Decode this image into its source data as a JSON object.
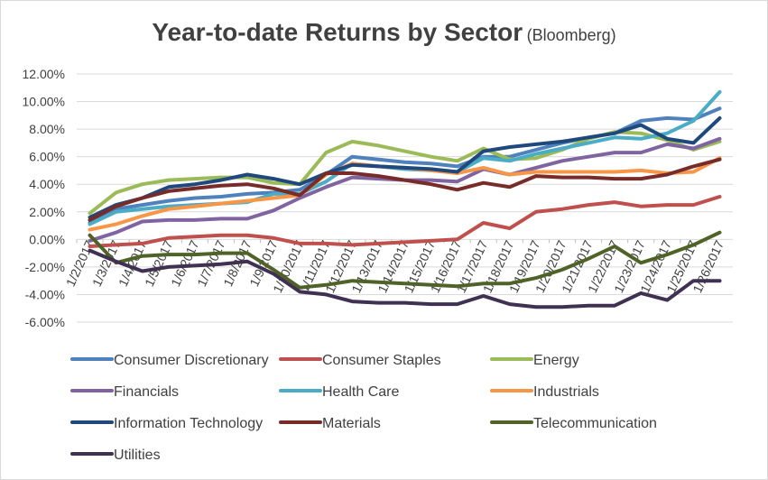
{
  "chart_data": {
    "type": "line",
    "title": "Year-to-date Returns by Sector",
    "subtitle": "(Bloomberg)",
    "xlabel": "",
    "ylabel": "",
    "ylim": [
      -0.06,
      0.12
    ],
    "y_ticks": [
      "12.00%",
      "10.00%",
      "8.00%",
      "6.00%",
      "4.00%",
      "2.00%",
      "0.00%",
      "-2.00%",
      "-4.00%",
      "-6.00%"
    ],
    "x_tick_labels": [
      "1/2/2017",
      "1/3/2017",
      "1/4/2017",
      "1/5/2017",
      "1/6/2017",
      "1/7/2017",
      "1/8/2017",
      "1/9/2017",
      "1/10/2017",
      "1/11/2017",
      "1/12/2017",
      "1/13/2017",
      "1/14/2017",
      "1/15/2017",
      "1/16/2017",
      "1/17/2017",
      "1/18/2017",
      "1/19/2017",
      "1/20/2017",
      "1/21/2017",
      "1/22/2017",
      "1/23/2017",
      "1/24/2017",
      "1/25/2017",
      "1/26/2017"
    ],
    "x": [
      "1/2/2017",
      "1/3/2017",
      "1/4/2017",
      "1/5/2017",
      "1/6/2017",
      "1/7/2017",
      "1/8/2017",
      "1/9/2017",
      "1/10/2017",
      "1/11/2017",
      "1/12/2017",
      "1/13/2017",
      "1/14/2017",
      "1/15/2017",
      "1/16/2017",
      "1/17/2017",
      "1/18/2017",
      "1/19/2017",
      "1/20/2017",
      "1/21/2017",
      "1/22/2017",
      "1/23/2017",
      "1/24/2017",
      "1/25/2017",
      "1/26/2017"
    ],
    "grid": true,
    "legend_position": "bottom",
    "series": [
      {
        "name": "Consumer Discretionary",
        "color": "#4f81bd",
        "values": [
          0.012,
          0.022,
          0.025,
          0.028,
          0.03,
          0.031,
          0.033,
          0.034,
          0.036,
          0.047,
          0.06,
          0.058,
          0.056,
          0.055,
          0.053,
          0.06,
          0.06,
          0.065,
          0.07,
          0.074,
          0.077,
          0.086,
          0.088,
          0.087,
          0.095
        ]
      },
      {
        "name": "Consumer Staples",
        "color": "#c0504d",
        "values": [
          -0.005,
          -0.004,
          -0.003,
          0.001,
          0.002,
          0.003,
          0.003,
          0.001,
          -0.003,
          -0.003,
          -0.004,
          -0.003,
          -0.002,
          -0.001,
          0.0,
          0.012,
          0.008,
          0.02,
          0.022,
          0.025,
          0.027,
          0.024,
          0.025,
          0.025,
          0.031
        ]
      },
      {
        "name": "Energy",
        "color": "#9bbb59",
        "values": [
          0.019,
          0.034,
          0.04,
          0.043,
          0.044,
          0.045,
          0.045,
          0.041,
          0.04,
          0.063,
          0.071,
          0.068,
          0.064,
          0.06,
          0.057,
          0.066,
          0.058,
          0.059,
          0.065,
          0.073,
          0.078,
          0.077,
          0.072,
          0.065,
          0.071
        ]
      },
      {
        "name": "Financials",
        "color": "#8064a2",
        "values": [
          -0.001,
          0.005,
          0.013,
          0.014,
          0.014,
          0.015,
          0.015,
          0.021,
          0.03,
          0.038,
          0.045,
          0.044,
          0.043,
          0.043,
          0.042,
          0.051,
          0.047,
          0.052,
          0.057,
          0.06,
          0.063,
          0.063,
          0.069,
          0.066,
          0.073
        ]
      },
      {
        "name": "Health Care",
        "color": "#4bacc6",
        "values": [
          0.011,
          0.02,
          0.022,
          0.024,
          0.025,
          0.026,
          0.027,
          0.033,
          0.033,
          0.042,
          0.055,
          0.053,
          0.051,
          0.05,
          0.049,
          0.059,
          0.057,
          0.062,
          0.066,
          0.07,
          0.074,
          0.073,
          0.077,
          0.086,
          0.107
        ]
      },
      {
        "name": "Industrials",
        "color": "#f79646",
        "values": [
          0.007,
          0.011,
          0.017,
          0.022,
          0.024,
          0.026,
          0.028,
          0.03,
          0.032,
          0.047,
          0.055,
          0.053,
          0.052,
          0.05,
          0.048,
          0.052,
          0.047,
          0.049,
          0.049,
          0.049,
          0.049,
          0.05,
          0.048,
          0.049,
          0.059
        ]
      },
      {
        "name": "Information Technology",
        "color": "#1f497d",
        "values": [
          0.016,
          0.025,
          0.03,
          0.038,
          0.04,
          0.043,
          0.047,
          0.044,
          0.04,
          0.048,
          0.054,
          0.053,
          0.052,
          0.051,
          0.049,
          0.064,
          0.067,
          0.069,
          0.071,
          0.074,
          0.077,
          0.083,
          0.073,
          0.07,
          0.088
        ]
      },
      {
        "name": "Materials",
        "color": "#772c2a",
        "values": [
          0.014,
          0.024,
          0.03,
          0.035,
          0.037,
          0.039,
          0.04,
          0.037,
          0.032,
          0.048,
          0.048,
          0.046,
          0.043,
          0.04,
          0.036,
          0.041,
          0.038,
          0.046,
          0.045,
          0.045,
          0.044,
          0.044,
          0.047,
          0.053,
          0.058
        ]
      },
      {
        "name": "Telecommunication",
        "color": "#4f6228",
        "values": [
          0.003,
          -0.017,
          -0.012,
          -0.011,
          -0.011,
          -0.01,
          -0.01,
          -0.022,
          -0.035,
          -0.033,
          -0.03,
          -0.031,
          -0.032,
          -0.033,
          -0.034,
          -0.032,
          -0.032,
          -0.028,
          -0.022,
          -0.014,
          -0.005,
          -0.017,
          -0.011,
          -0.004,
          0.005
        ]
      },
      {
        "name": "Utilities",
        "color": "#403152",
        "values": [
          -0.008,
          -0.016,
          -0.023,
          -0.02,
          -0.019,
          -0.018,
          -0.016,
          -0.025,
          -0.038,
          -0.04,
          -0.045,
          -0.046,
          -0.046,
          -0.047,
          -0.047,
          -0.041,
          -0.047,
          -0.049,
          -0.049,
          -0.048,
          -0.048,
          -0.039,
          -0.044,
          -0.03,
          -0.03
        ]
      }
    ]
  }
}
